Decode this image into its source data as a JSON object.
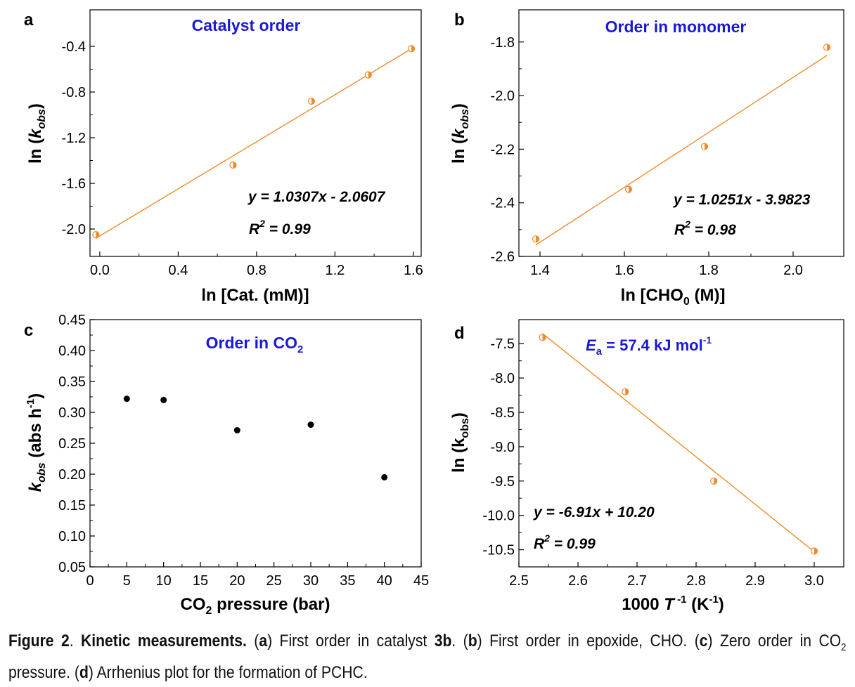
{
  "colors": {
    "fit_line": "#f08a2c",
    "marker": "#f08a2c",
    "title": "#1a1ad6",
    "axis": "#000000",
    "black_marker": "#000000"
  },
  "chart_data": [
    {
      "panel": "a",
      "type": "scatter",
      "title": "Catalyst order",
      "xlabel_parts": [
        "ln [Cat. (mM)]"
      ],
      "ylabel_parts": [
        "ln (",
        "k",
        "obs",
        ")"
      ],
      "xlim": [
        -0.05,
        1.64
      ],
      "ylim": [
        -2.24,
        -0.08
      ],
      "xticks": [
        0.0,
        0.4,
        0.8,
        1.2,
        1.6
      ],
      "xtick_labels": [
        "0.0",
        "0.4",
        "0.8",
        "1.2",
        "1.6"
      ],
      "yticks": [
        -2.0,
        -1.6,
        -1.2,
        -0.8,
        -0.4
      ],
      "ytick_labels": [
        "-2.0",
        "-1.6",
        "-1.2",
        "-0.8",
        "-0.4"
      ],
      "x": [
        -0.02,
        0.68,
        1.08,
        1.37,
        1.59
      ],
      "y": [
        -2.05,
        -1.44,
        -0.88,
        -0.65,
        -0.42
      ],
      "marker": "half-filled circle",
      "fit": {
        "slope": 1.0307,
        "intercept": -2.0607,
        "x_range": [
          -0.02,
          1.6
        ]
      },
      "equation": "y = 1.0307x - 2.0607",
      "r2_label": "R",
      "r2_sup": "2",
      "r2_value": " = 0.99"
    },
    {
      "panel": "b",
      "type": "scatter",
      "title": "Order in monomer",
      "xlabel_parts": [
        "ln [CHO",
        "0",
        " (M)]"
      ],
      "ylabel_parts": [
        "ln (",
        "k",
        "obs",
        ")"
      ],
      "xlim": [
        1.35,
        2.12
      ],
      "ylim": [
        -2.6,
        -1.68
      ],
      "xticks": [
        1.4,
        1.6,
        1.8,
        2.0
      ],
      "xtick_labels": [
        "1.4",
        "1.6",
        "1.8",
        "2.0"
      ],
      "yticks": [
        -2.6,
        -2.4,
        -2.2,
        -2.0,
        -1.8
      ],
      "ytick_labels": [
        "-2.6",
        "-2.4",
        "-2.2",
        "-2.0",
        "-1.8"
      ],
      "x": [
        1.39,
        1.61,
        1.79,
        2.08
      ],
      "y": [
        -2.535,
        -2.35,
        -2.19,
        -1.82
      ],
      "marker": "half-filled circle",
      "fit": {
        "slope": 1.0251,
        "intercept": -3.9823,
        "x_range": [
          1.39,
          2.08
        ]
      },
      "equation": "y = 1.0251x - 3.9823",
      "r2_label": "R",
      "r2_sup": "2",
      "r2_value": " = 0.98"
    },
    {
      "panel": "c",
      "type": "scatter",
      "title": "Order in CO",
      "title_sub": "2",
      "xlabel_parts": [
        "CO",
        "2",
        " pressure (bar)"
      ],
      "ylabel_parts": [
        "k",
        "obs",
        " (abs h",
        "-1",
        ")"
      ],
      "xlim": [
        0,
        45
      ],
      "ylim": [
        0.05,
        0.45
      ],
      "xticks": [
        0,
        5,
        10,
        15,
        20,
        25,
        30,
        35,
        40,
        45
      ],
      "xtick_labels": [
        "0",
        "5",
        "10",
        "15",
        "20",
        "25",
        "30",
        "35",
        "40",
        "45"
      ],
      "yticks": [
        0.05,
        0.1,
        0.15,
        0.2,
        0.25,
        0.3,
        0.35,
        0.4,
        0.45
      ],
      "ytick_labels": [
        "0.05",
        "0.10",
        "0.15",
        "0.20",
        "0.25",
        "0.30",
        "0.35",
        "0.40",
        "0.45"
      ],
      "x": [
        5,
        10,
        20,
        30,
        40
      ],
      "y": [
        0.322,
        0.32,
        0.271,
        0.28,
        0.195
      ],
      "marker": "filled circle"
    },
    {
      "panel": "d",
      "type": "scatter",
      "title_parts": [
        "E",
        "a",
        " =  57.4 kJ mol",
        "-1"
      ],
      "xlabel_parts": [
        "1000 ",
        "T",
        " -1",
        " (K",
        "-1",
        ")"
      ],
      "ylabel_parts": [
        "ln (k",
        "obs",
        ")"
      ],
      "xlim": [
        2.5,
        3.05
      ],
      "ylim": [
        -10.75,
        -7.15
      ],
      "xticks": [
        2.5,
        2.6,
        2.7,
        2.8,
        2.9,
        3.0
      ],
      "xtick_labels": [
        "2.5",
        "2.6",
        "2.7",
        "2.8",
        "2.9",
        "3.0"
      ],
      "yticks": [
        -10.5,
        -10.0,
        -9.5,
        -9.0,
        -8.5,
        -8.0,
        -7.5
      ],
      "ytick_labels": [
        "-10.5",
        "-10.0",
        "-9.5",
        "-9.0",
        "-8.5",
        "-8.0",
        "-7.5"
      ],
      "x": [
        2.54,
        2.68,
        2.83,
        3.0
      ],
      "y": [
        -7.41,
        -8.2,
        -9.5,
        -10.52
      ],
      "marker": "half-filled circle",
      "fit": {
        "slope": -6.91,
        "intercept": 10.2,
        "x_range": [
          2.54,
          3.0
        ]
      },
      "equation": "y = -6.91x + 10.20",
      "r2_label": "R",
      "r2_sup": "2",
      "r2_value": " = 0.99"
    }
  ],
  "caption": {
    "fig_label": "Figure 2",
    "sep1": ". ",
    "heading": "Kinetic measurements.",
    "t1": " (",
    "a": "a",
    "t2": ") First order in catalyst ",
    "cat": "3b",
    "t3": ". (",
    "b": "b",
    "t4": ") First order in epoxide, CHO. (",
    "c": "c",
    "t5": ") Zero order in CO",
    "co2_sub": "2",
    "t6": " pressure. (",
    "d": "d",
    "t7": ") Arrhenius plot for the formation of PCHC."
  }
}
